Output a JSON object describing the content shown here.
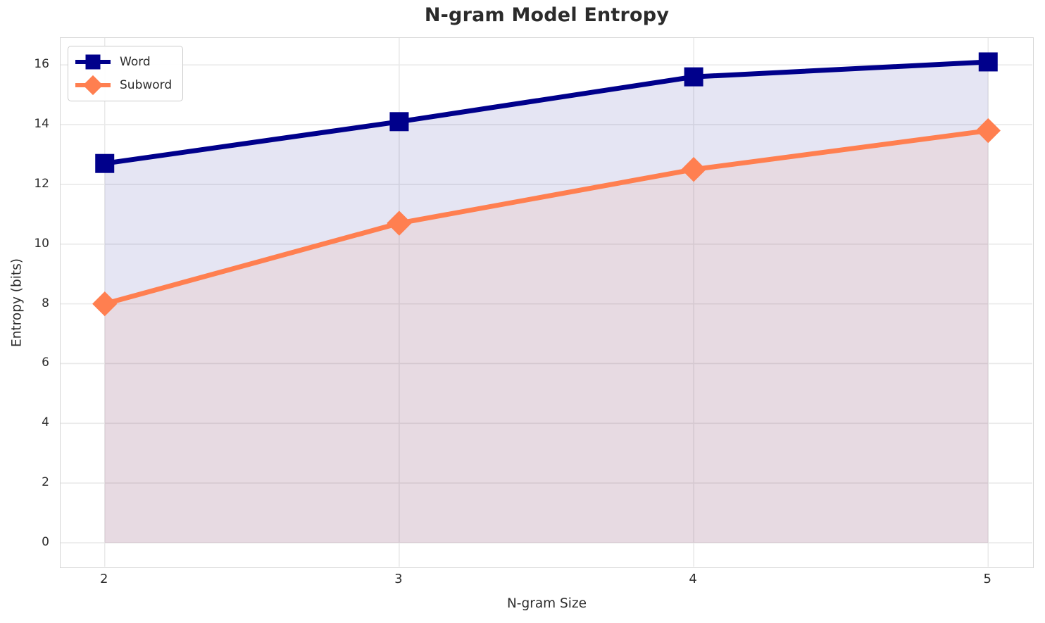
{
  "title": "N-gram Model Entropy",
  "axes": {
    "x_label": "N-gram Size",
    "y_label": "Entropy (bits)",
    "x_tick_labels": [
      "2",
      "3",
      "4",
      "5"
    ],
    "y_tick_labels": [
      "0",
      "2",
      "4",
      "6",
      "8",
      "10",
      "12",
      "14",
      "16"
    ]
  },
  "legend": {
    "items": [
      {
        "label": "Word",
        "marker": "square",
        "color": "#00008B"
      },
      {
        "label": "Subword",
        "marker": "diamond",
        "color": "#FF7F50"
      }
    ]
  },
  "colors": {
    "word_series": "#00008B",
    "subword_series": "#FF7F50",
    "grid_line": "#e9e9e9",
    "axis_spine": "#d6d6d6",
    "text": "#2b2b2b",
    "background": "#ffffff"
  },
  "chart_data": {
    "type": "line",
    "title": "N-gram Model Entropy",
    "xlabel": "N-gram Size",
    "ylabel": "Entropy (bits)",
    "x": [
      2,
      3,
      4,
      5
    ],
    "x_tick_values": [
      2,
      3,
      4,
      5
    ],
    "y_tick_values": [
      0,
      2,
      4,
      6,
      8,
      10,
      12,
      14,
      16
    ],
    "xlim": [
      1.85,
      5.15
    ],
    "ylim": [
      -0.8,
      16.9
    ],
    "grid": true,
    "legend_position": "upper-left",
    "area_fill_alpha": 0.1,
    "series": [
      {
        "name": "Word",
        "marker": "square",
        "color": "#00008B",
        "values": [
          12.7,
          14.1,
          15.6,
          16.1
        ],
        "fill_to_zero": true
      },
      {
        "name": "Subword",
        "marker": "diamond",
        "color": "#FF7F50",
        "values": [
          8.0,
          10.7,
          12.5,
          13.8
        ],
        "fill_to_zero": true
      }
    ]
  }
}
